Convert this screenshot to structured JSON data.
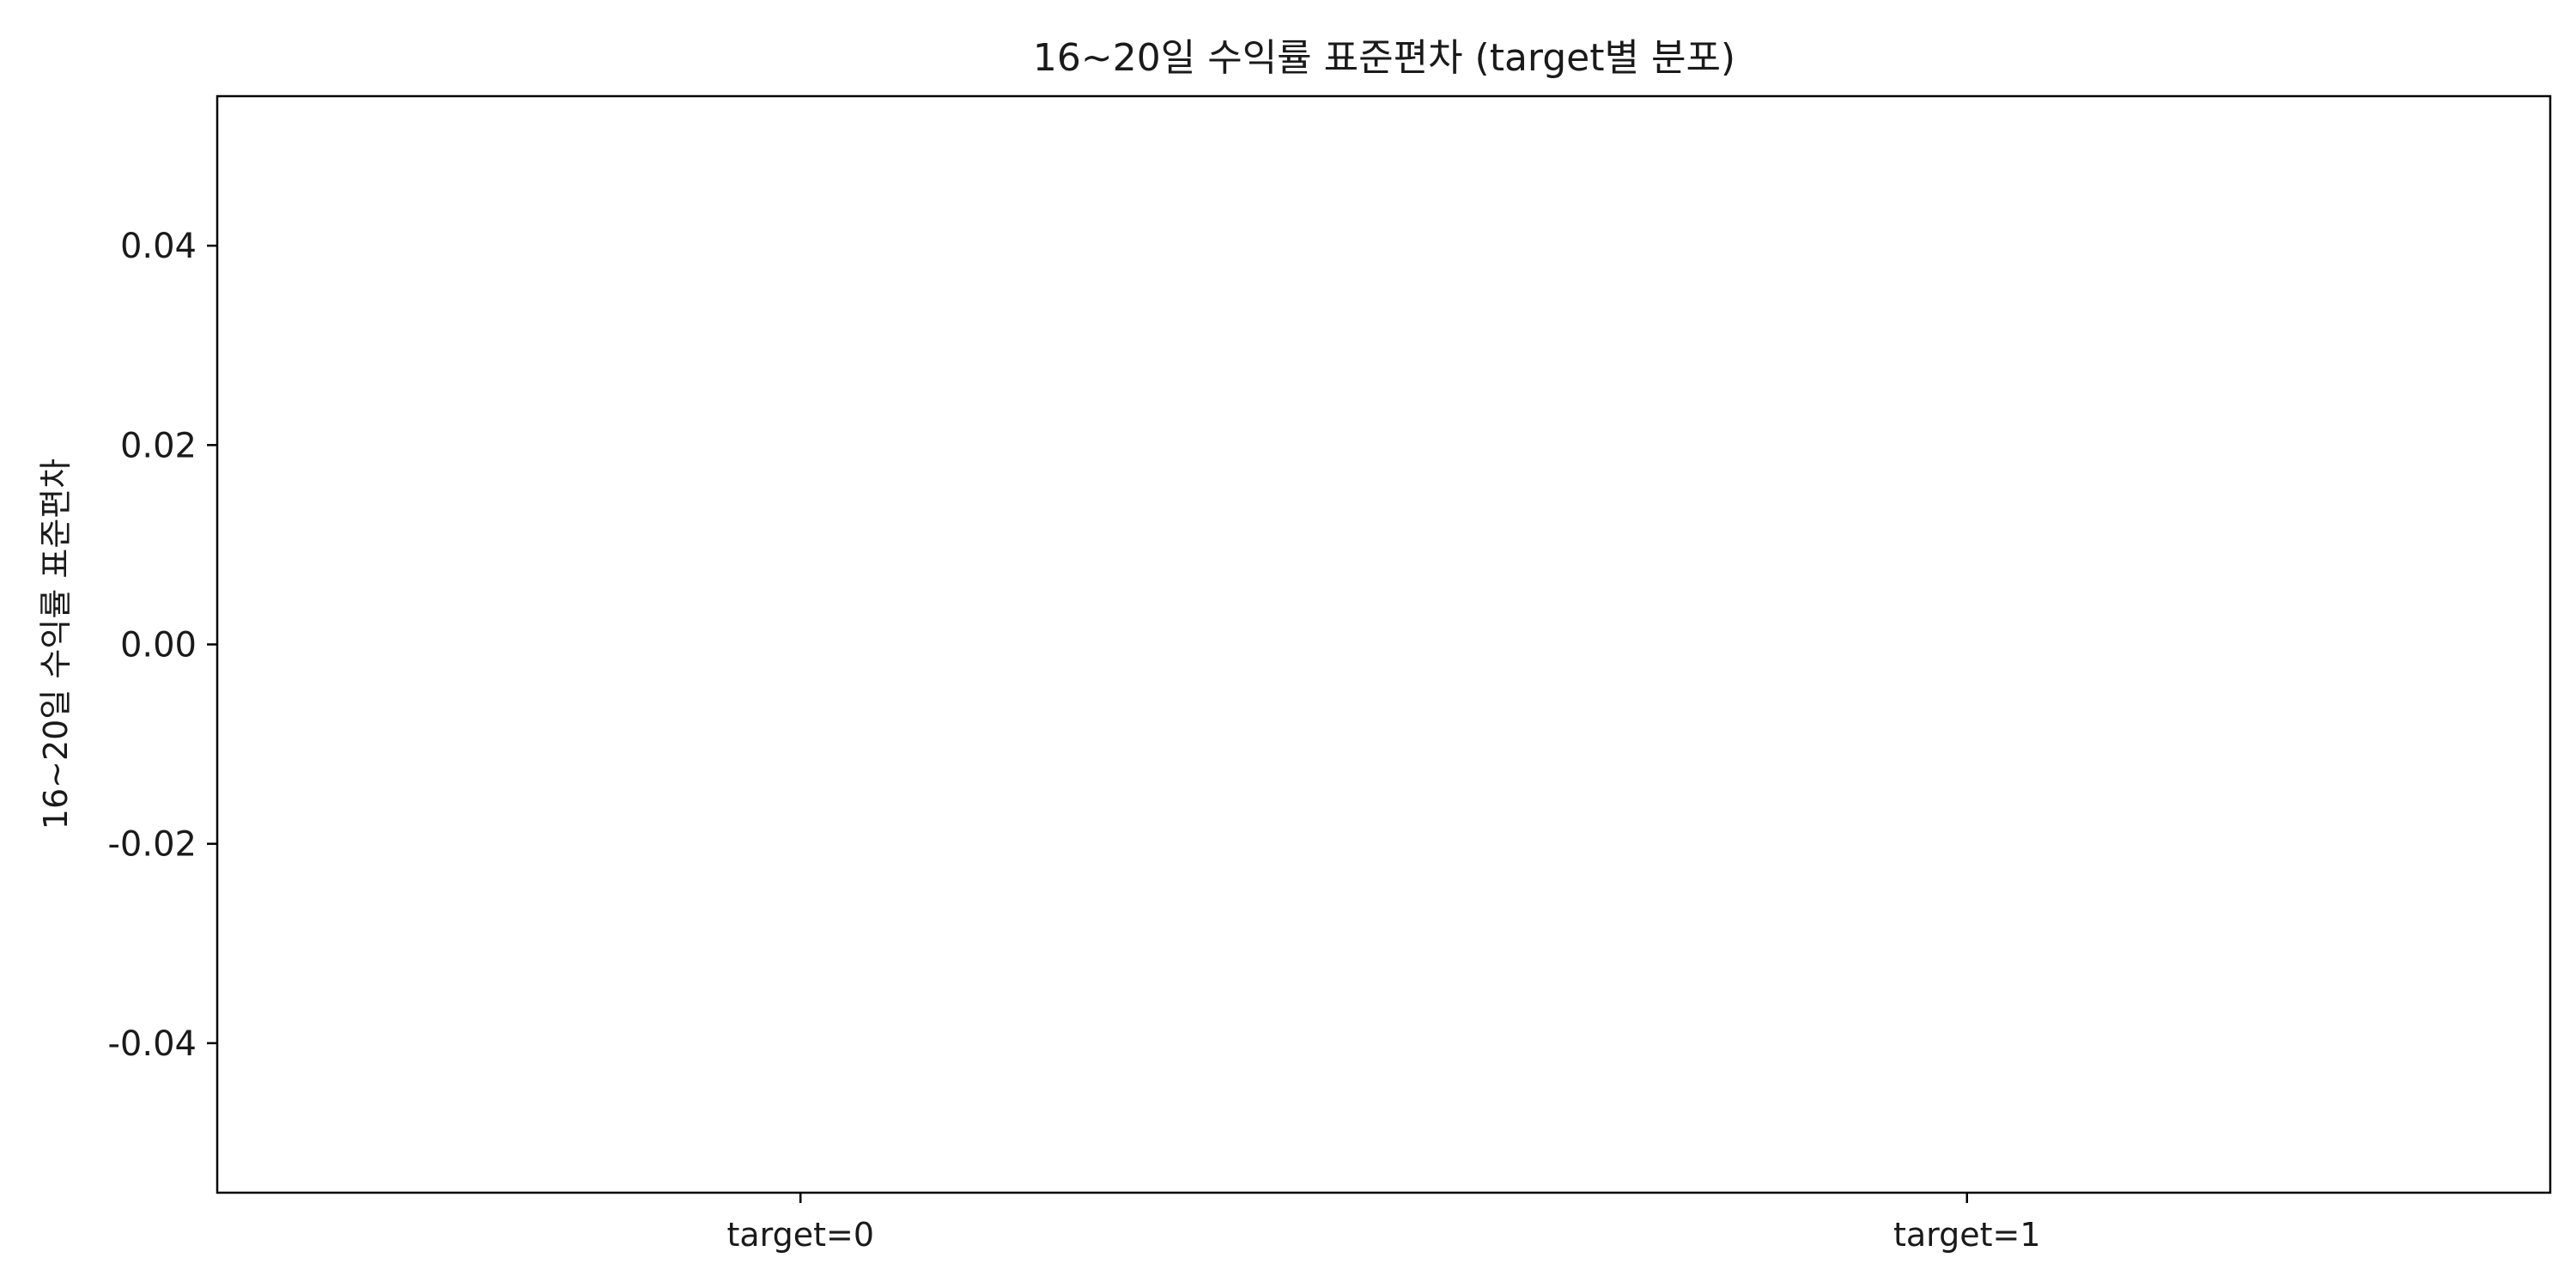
{
  "chart_data": {
    "type": "box",
    "title": "16~20일 수익률 표준편차 (target별 분포)",
    "xlabel": "",
    "ylabel": "16~20일 수익률 표준편차",
    "categories": [
      "target=0",
      "target=1"
    ],
    "series": [],
    "ylim": [
      -0.055,
      0.055
    ],
    "yticks": [
      {
        "value": 0.04,
        "label": "0.04"
      },
      {
        "value": 0.02,
        "label": "0.02"
      },
      {
        "value": 0.0,
        "label": "0.00"
      },
      {
        "value": -0.02,
        "label": "-0.02"
      },
      {
        "value": -0.04,
        "label": "-0.04"
      }
    ],
    "grid": false,
    "legend": "none",
    "colors": {
      "axes": "#000000",
      "text": "#1a1a1a",
      "background": "#ffffff"
    }
  }
}
